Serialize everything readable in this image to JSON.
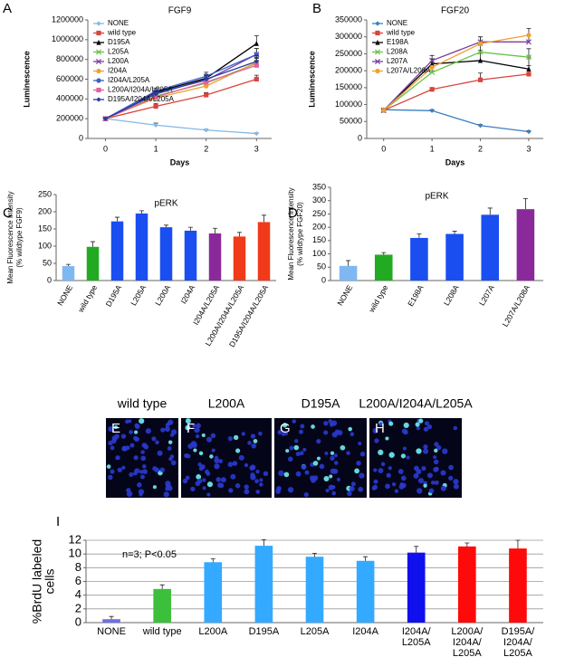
{
  "chart_data": [
    {
      "type": "line",
      "panel": "A",
      "title": "FGF9",
      "xlabel": "Days",
      "ylabel": "Luminescence",
      "x": [
        0,
        1,
        2,
        3
      ],
      "xlim": [
        -0.35,
        3.3
      ],
      "xticks": [
        0,
        1,
        2,
        3
      ],
      "ylim": [
        0,
        1200000
      ],
      "yticks": [
        0,
        200000,
        400000,
        600000,
        800000,
        1000000,
        1200000
      ],
      "legend": "upper left",
      "series": [
        {
          "name": "NONE",
          "color": "#82b8e8",
          "marker": "diamond",
          "values": [
            200000,
            135000,
            85000,
            50000
          ],
          "errors": [
            10000,
            20000,
            8000,
            5000
          ]
        },
        {
          "name": "wild type",
          "color": "#d9443c",
          "marker": "square",
          "values": [
            200000,
            325000,
            440000,
            600000
          ],
          "errors": [
            10000,
            30000,
            25000,
            40000
          ]
        },
        {
          "name": "D195A",
          "color": "#000000",
          "marker": "triangle",
          "values": [
            200000,
            470000,
            610000,
            960000
          ],
          "errors": [
            10000,
            25000,
            40000,
            80000
          ]
        },
        {
          "name": "L205A",
          "color": "#6cc04a",
          "marker": "x",
          "values": [
            200000,
            430000,
            560000,
            760000
          ],
          "errors": [
            10000,
            30000,
            40000,
            50000
          ]
        },
        {
          "name": "L200A",
          "color": "#7b3fa0",
          "marker": "x",
          "values": [
            200000,
            460000,
            590000,
            850000
          ],
          "errors": [
            10000,
            30000,
            40000,
            60000
          ]
        },
        {
          "name": "I204A",
          "color": "#f0a030",
          "marker": "circle",
          "values": [
            200000,
            410000,
            530000,
            770000
          ],
          "errors": [
            10000,
            30000,
            40000,
            50000
          ]
        },
        {
          "name": "I204A/L205A",
          "color": "#3a5fcd",
          "marker": "circle",
          "values": [
            200000,
            480000,
            630000,
            850000
          ],
          "errors": [
            10000,
            30000,
            40000,
            60000
          ]
        },
        {
          "name": "L200A/I204A/L205A",
          "color": "#e060a0",
          "marker": "square",
          "values": [
            200000,
            420000,
            570000,
            740000
          ],
          "errors": [
            10000,
            30000,
            40000,
            50000
          ]
        },
        {
          "name": "D195A/I204A/L205A",
          "color": "#1f3f9f",
          "marker": "diamond",
          "values": [
            200000,
            450000,
            600000,
            780000
          ],
          "errors": [
            10000,
            30000,
            40000,
            60000
          ]
        }
      ]
    },
    {
      "type": "line",
      "panel": "B",
      "title": "FGF20",
      "xlabel": "Days",
      "ylabel": "Luminescence",
      "x": [
        0,
        1,
        2,
        3
      ],
      "xlim": [
        -0.35,
        3.3
      ],
      "xticks": [
        0,
        1,
        2,
        3
      ],
      "ylim": [
        0,
        350000
      ],
      "yticks": [
        0,
        50000,
        100000,
        150000,
        200000,
        250000,
        300000,
        350000
      ],
      "legend": "upper left",
      "series": [
        {
          "name": "NONE",
          "color": "#3a7fc0",
          "marker": "diamond",
          "values": [
            85000,
            82000,
            38000,
            20000
          ],
          "errors": [
            3000,
            3000,
            3000,
            3000
          ]
        },
        {
          "name": "wild type",
          "color": "#d9443c",
          "marker": "square",
          "values": [
            83000,
            145000,
            173000,
            190000
          ],
          "errors": [
            3000,
            5000,
            20000,
            25000
          ]
        },
        {
          "name": "E198A",
          "color": "#000000",
          "marker": "triangle",
          "values": [
            83000,
            220000,
            230000,
            205000
          ],
          "errors": [
            3000,
            15000,
            30000,
            35000
          ]
        },
        {
          "name": "L208A",
          "color": "#6cc04a",
          "marker": "x",
          "values": [
            83000,
            195000,
            255000,
            240000
          ],
          "errors": [
            3000,
            15000,
            20000,
            25000
          ]
        },
        {
          "name": "L207A",
          "color": "#7b3fa0",
          "marker": "x",
          "values": [
            83000,
            230000,
            285000,
            285000
          ],
          "errors": [
            3000,
            15000,
            15000,
            20000
          ]
        },
        {
          "name": "L207A/L208A",
          "color": "#f0a030",
          "marker": "circle",
          "values": [
            83000,
            210000,
            280000,
            305000
          ],
          "errors": [
            3000,
            15000,
            20000,
            20000
          ]
        }
      ]
    },
    {
      "type": "bar",
      "panel": "C",
      "title": "pERK",
      "ylabel": [
        "Mean Fluorescence Intensity",
        "(% wildtype FGF9)"
      ],
      "categories": [
        "NONE",
        "wild type",
        "D195A",
        "L205A",
        "L200A",
        "I204A",
        "I204A/L205A",
        "L200A/I204A/L205A",
        "D195A/I204A/L205A"
      ],
      "values": [
        42,
        98,
        172,
        195,
        155,
        145,
        137,
        128,
        170
      ],
      "errors": [
        5,
        15,
        12,
        8,
        6,
        10,
        15,
        12,
        20
      ],
      "colors": [
        "#7fb8f0",
        "#22aa22",
        "#1a4ef0",
        "#1a4ef0",
        "#1a4ef0",
        "#1a4ef0",
        "#8a2a9a",
        "#f03a1a",
        "#f03a1a"
      ],
      "ylim": [
        0,
        250
      ],
      "yticks": [
        0,
        50,
        100,
        150,
        200,
        250
      ]
    },
    {
      "type": "bar",
      "panel": "D",
      "title": "pERK",
      "ylabel": [
        "Mean Fluorescence Intensity",
        "(% wildtype FGF20)"
      ],
      "categories": [
        "NONE",
        "wild type",
        "E198A",
        "L208A",
        "L207A",
        "L207A/L208A"
      ],
      "values": [
        55,
        97,
        160,
        175,
        247,
        268
      ],
      "errors": [
        20,
        8,
        15,
        10,
        25,
        40
      ],
      "colors": [
        "#7fb8f0",
        "#22aa22",
        "#1a4ef0",
        "#1a4ef0",
        "#1a4ef0",
        "#8a2a9a"
      ],
      "ylim": [
        0,
        350
      ],
      "yticks": [
        0,
        50,
        100,
        150,
        200,
        250,
        300,
        350
      ]
    },
    {
      "type": "bar",
      "panel": "I",
      "ylabel": [
        "%BrdU labeled",
        "cells"
      ],
      "annotation": "n=3; P<0.05",
      "categories": [
        [
          "NONE"
        ],
        [
          "wild type"
        ],
        [
          "L200A"
        ],
        [
          "D195A"
        ],
        [
          "L205A"
        ],
        [
          "I204A"
        ],
        [
          "I204A/",
          "L205A"
        ],
        [
          "L200A/",
          "I204A/",
          "L205A"
        ],
        [
          "D195A/",
          "I204A/",
          "L205A"
        ]
      ],
      "values": [
        0.5,
        4.9,
        8.8,
        11.2,
        9.6,
        9.0,
        10.2,
        11.1,
        10.8
      ],
      "errors": [
        0.4,
        0.6,
        0.5,
        0.9,
        0.5,
        0.6,
        0.9,
        0.5,
        1.2
      ],
      "colors": [
        "#7070e0",
        "#3cc03c",
        "#33aaff",
        "#33aaff",
        "#33aaff",
        "#33aaff",
        "#1010ee",
        "#ff0a0a",
        "#ff0a0a"
      ],
      "ylim": [
        0,
        12
      ],
      "yticks": [
        0,
        2,
        4,
        6,
        8,
        10,
        12
      ],
      "grid": true
    }
  ],
  "image_panels": [
    {
      "letter": "E",
      "title": "wild type"
    },
    {
      "letter": "F",
      "title": "L200A"
    },
    {
      "letter": "G",
      "title": "D195A"
    },
    {
      "letter": "H",
      "title": "L200A/I204A/L205A"
    }
  ]
}
